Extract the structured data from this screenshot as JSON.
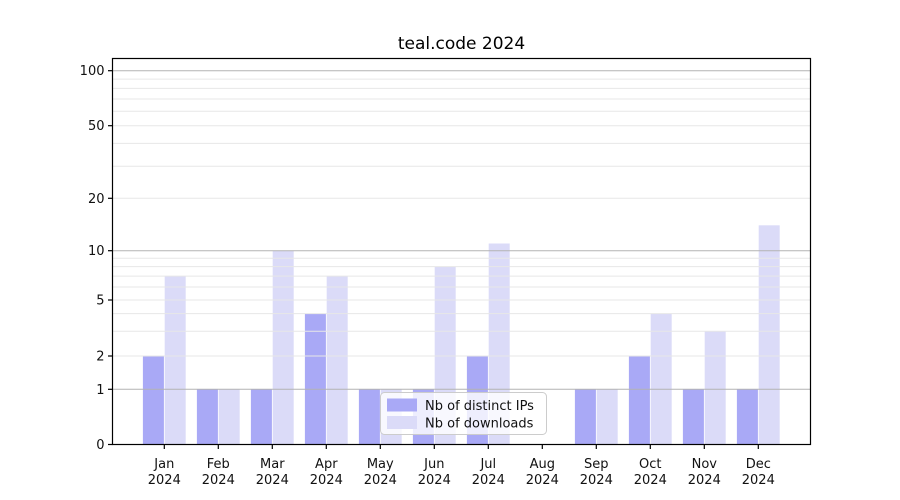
{
  "chart_data": {
    "type": "bar",
    "title": "teal.code 2024",
    "categories": [
      "Jan 2024",
      "Feb 2024",
      "Mar 2024",
      "Apr 2024",
      "May 2024",
      "Jun 2024",
      "Jul 2024",
      "Aug 2024",
      "Sep 2024",
      "Oct 2024",
      "Nov 2024",
      "Dec 2024"
    ],
    "category_months": [
      "Jan",
      "Feb",
      "Mar",
      "Apr",
      "May",
      "Jun",
      "Jul",
      "Aug",
      "Sep",
      "Oct",
      "Nov",
      "Dec"
    ],
    "category_year": "2024",
    "series": [
      {
        "name": "Nb of distinct IPs",
        "color": "#a9a9f6",
        "values": [
          2,
          1,
          1,
          4,
          1,
          1,
          2,
          0,
          1,
          2,
          1,
          1
        ]
      },
      {
        "name": "Nb of downloads",
        "color": "#dbdbf8",
        "values": [
          7,
          1,
          10,
          7,
          1,
          8,
          11,
          0,
          1,
          4,
          3,
          14
        ]
      }
    ],
    "xlabel": "",
    "ylabel": "",
    "y_ticks": [
      0,
      1,
      2,
      5,
      10,
      20,
      50,
      100
    ],
    "y_axis_scale": "log-like with 0 baseline",
    "ylim": [
      0,
      117
    ],
    "grid": true,
    "legend_position": "lower center",
    "colors": {
      "grid_decade": "#b3b3b3",
      "grid_minor": "#e7e7e7",
      "axis": "#000000",
      "legend_border": "#cccccc"
    }
  }
}
